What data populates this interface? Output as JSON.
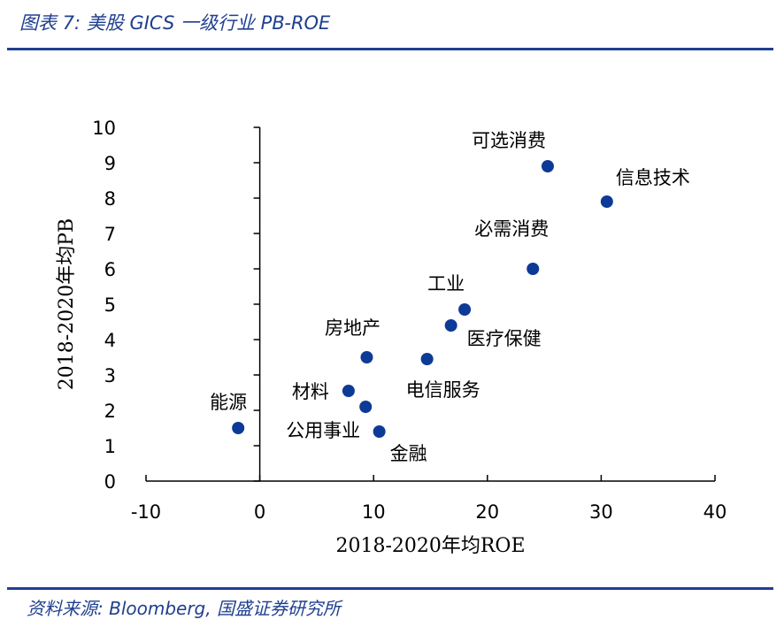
{
  "header": {
    "title": "图表 7:  美股 GICS 一级行业 PB-ROE"
  },
  "footer": {
    "source": "资料来源:  Bloomberg, 国盛证券研究所"
  },
  "chart_data": {
    "type": "scatter",
    "xlabel": "2018-2020年均ROE",
    "ylabel": "2018-2020年均PB",
    "xlim": [
      -10,
      40
    ],
    "ylim": [
      0,
      10
    ],
    "xticks": [
      -10,
      0,
      10,
      20,
      30,
      40
    ],
    "yticks": [
      0,
      1,
      2,
      3,
      4,
      5,
      6,
      7,
      8,
      9,
      10
    ],
    "grid": false,
    "marker_color": "#0d3a96",
    "points": [
      {
        "label": "可选消费",
        "x": 25.3,
        "y": 8.9,
        "anchor": "end",
        "dx": -2,
        "dy": -22
      },
      {
        "label": "信息技术",
        "x": 30.5,
        "y": 7.9,
        "anchor": "start",
        "dx": 10,
        "dy": -20
      },
      {
        "label": "必需消费",
        "x": 24.0,
        "y": 6.0,
        "anchor": "end",
        "dx": 18,
        "dy": -38
      },
      {
        "label": "工业",
        "x": 18.0,
        "y": 4.85,
        "anchor": "end",
        "dx": 0,
        "dy": -22
      },
      {
        "label": "医疗保健",
        "x": 16.8,
        "y": 4.4,
        "anchor": "start",
        "dx": 18,
        "dy": 22
      },
      {
        "label": "房地产",
        "x": 9.4,
        "y": 3.5,
        "anchor": "middle",
        "dx": -16,
        "dy": -26
      },
      {
        "label": "电信服务",
        "x": 14.7,
        "y": 3.45,
        "anchor": "end",
        "dx": 60,
        "dy": 42
      },
      {
        "label": "材料",
        "x": 7.8,
        "y": 2.55,
        "anchor": "end",
        "dx": -22,
        "dy": 8
      },
      {
        "label": "公用事业",
        "x": 9.3,
        "y": 2.1,
        "anchor": "end",
        "dx": -6,
        "dy": 34
      },
      {
        "label": "金融",
        "x": 10.5,
        "y": 1.4,
        "anchor": "start",
        "dx": 12,
        "dy": 32
      },
      {
        "label": "能源",
        "x": -1.9,
        "y": 1.5,
        "anchor": "end",
        "dx": 10,
        "dy": -22
      }
    ]
  }
}
